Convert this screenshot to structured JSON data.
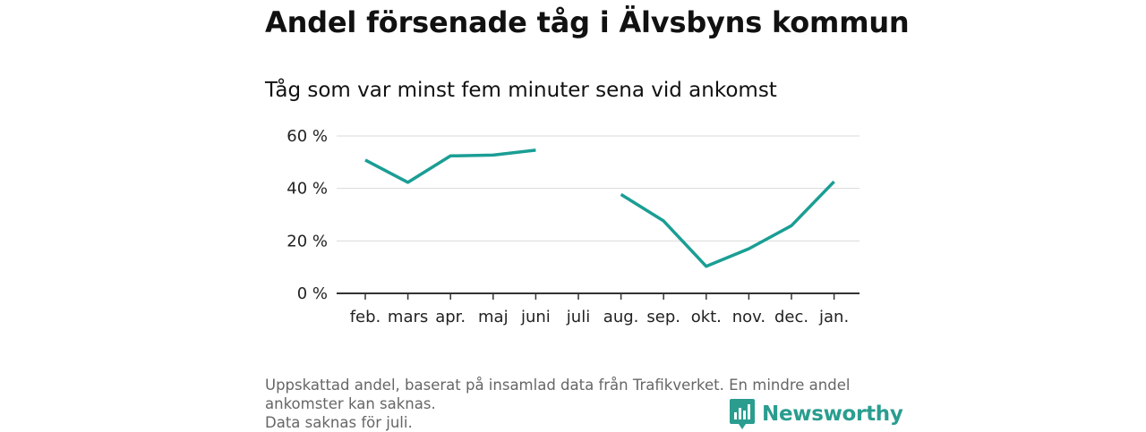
{
  "title": "Andel försenade tåg i Älvsbyns kommun",
  "subtitle": "Tåg som var minst fem minuter sena vid ankomst",
  "footnote": {
    "line1": "Uppskattad andel, baserat på insamlad data från Trafikverket. En mindre andel ankomster kan saknas.",
    "line2": "Data saknas för juli."
  },
  "logo": {
    "text": "Newsworthy",
    "icon": "newsworthy-logo-icon",
    "color": "#2a9d8f"
  },
  "chart_data": {
    "type": "line",
    "title": "Andel försenade tåg i Älvsbyns kommun",
    "subtitle": "Tåg som var minst fem minuter sena vid ankomst",
    "categories": [
      "feb.",
      "mars",
      "apr.",
      "maj",
      "juni",
      "juli",
      "aug.",
      "sep.",
      "okt.",
      "nov.",
      "dec.",
      "jan."
    ],
    "series": [
      {
        "values": [
          50.8,
          42.3,
          52.4,
          52.7,
          54.6,
          null,
          37.7,
          27.6,
          10.3,
          17.0,
          25.8,
          42.6
        ],
        "color": "#1a9e94"
      }
    ],
    "ylim": [
      0,
      60
    ],
    "yticks": [
      0,
      20,
      40,
      60
    ],
    "ytick_labels": [
      "0 %",
      "20 %",
      "40 %",
      "60 %"
    ],
    "grid": true,
    "legend": "none"
  }
}
